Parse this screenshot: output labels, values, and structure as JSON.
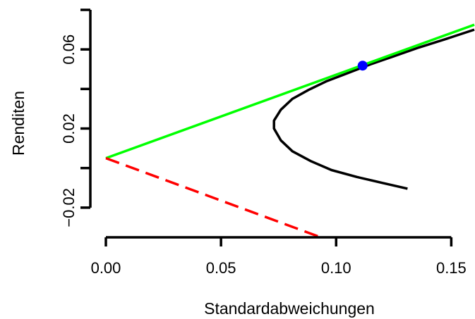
{
  "chart_data": {
    "type": "line",
    "title": "",
    "xlabel": "Standardabweichungen",
    "ylabel": "Renditen",
    "xlim": [
      0.0,
      0.16
    ],
    "ylim": [
      -0.04,
      0.08
    ],
    "x_ticks": [
      0.0,
      0.05,
      0.1,
      0.15
    ],
    "x_tick_labels": [
      "0.00",
      "0.05",
      "0.10",
      "0.15"
    ],
    "y_ticks": [
      -0.02,
      0.0,
      0.02,
      0.04,
      0.06,
      0.08
    ],
    "y_tick_labels": [
      "−0.02",
      "",
      "0.02",
      "",
      "0.06",
      ""
    ],
    "grid": false,
    "legend": "none",
    "colors": {
      "frontier": "#000000",
      "tangent_line": "#00ff00",
      "lower_line": "#ff0000",
      "tangency_point": "#0000ff"
    },
    "series": [
      {
        "style": "solid",
        "color": "#000000",
        "points": [
          [
            0.131,
            -0.0104
          ],
          [
            0.12,
            -0.0075
          ],
          [
            0.109,
            -0.0045
          ],
          [
            0.098,
            -0.001
          ],
          [
            0.089,
            0.0035
          ],
          [
            0.081,
            0.0085
          ],
          [
            0.076,
            0.014
          ],
          [
            0.073,
            0.02
          ],
          [
            0.073,
            0.024
          ],
          [
            0.076,
            0.0295
          ],
          [
            0.081,
            0.035
          ],
          [
            0.088,
            0.0395
          ],
          [
            0.096,
            0.044
          ],
          [
            0.105,
            0.048
          ],
          [
            0.115,
            0.0525
          ],
          [
            0.125,
            0.0565
          ],
          [
            0.136,
            0.061
          ],
          [
            0.147,
            0.065
          ],
          [
            0.16,
            0.07
          ]
        ]
      },
      {
        "style": "solid",
        "color": "#00ff00",
        "points": [
          [
            0.0,
            0.005
          ],
          [
            0.16,
            0.0725
          ]
        ]
      },
      {
        "style": "dashed",
        "color": "#ff0000",
        "points": [
          [
            0.0,
            0.005
          ],
          [
            0.094,
            -0.0353
          ]
        ]
      }
    ],
    "highlight_point": {
      "x": 0.1115,
      "y": 0.0518,
      "color": "#0000ff"
    }
  }
}
